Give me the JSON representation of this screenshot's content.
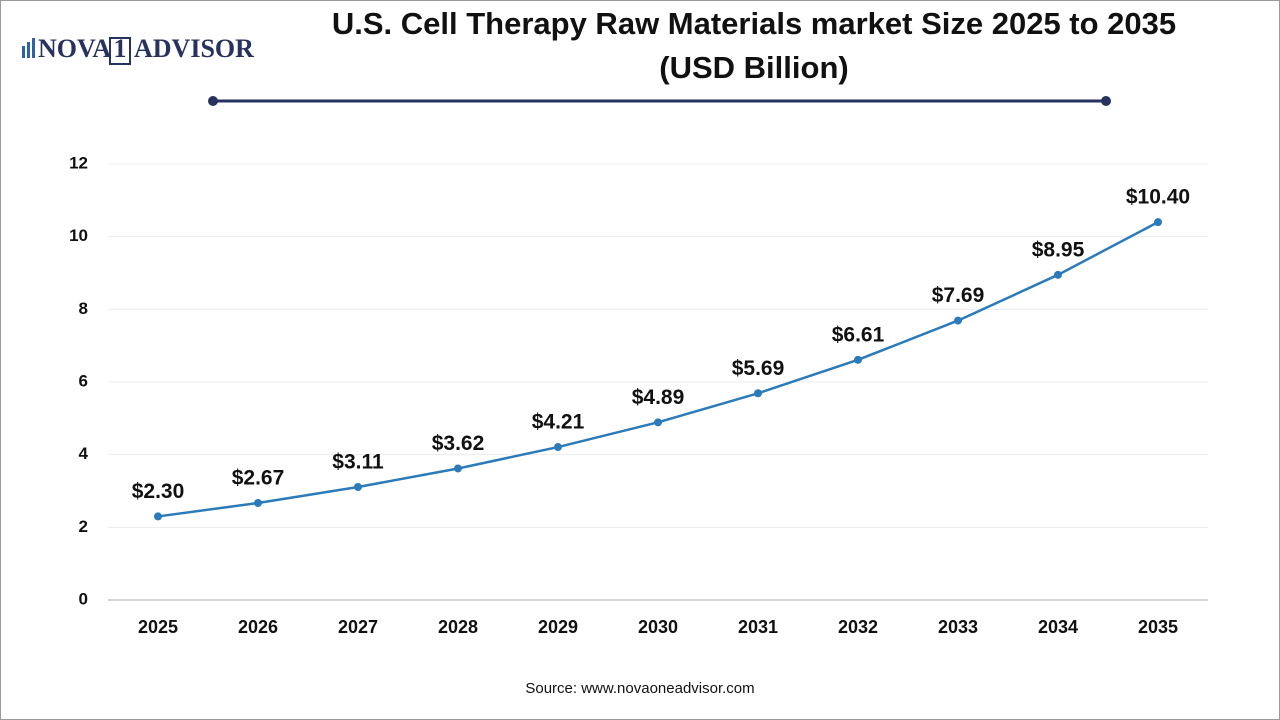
{
  "logo": {
    "left": "NOVA",
    "mark": "1",
    "right": "ADVISOR"
  },
  "chart_data": {
    "type": "line",
    "title": [
      "U.S. Cell Therapy Raw Materials market Size 2025 to 2035",
      "(USD Billion)"
    ],
    "categories": [
      "2025",
      "2026",
      "2027",
      "2028",
      "2029",
      "2030",
      "2031",
      "2032",
      "2033",
      "2034",
      "2035"
    ],
    "series": [
      {
        "name": "Market Size",
        "color": "#2b7bba",
        "values": [
          2.3,
          2.67,
          3.11,
          3.62,
          4.21,
          4.89,
          5.69,
          6.61,
          7.69,
          8.95,
          10.4
        ],
        "value_labels": [
          "$2.30",
          "$2.67",
          "$3.11",
          "$3.62",
          "$4.21",
          "$4.89",
          "$5.69",
          "$6.61",
          "$7.69",
          "$8.95",
          "$10.40"
        ]
      }
    ],
    "ylim": [
      0,
      12
    ],
    "yticks": [
      0,
      2,
      4,
      6,
      8,
      10,
      12
    ],
    "grid": true,
    "source": "Source: www.novaoneadvisor.com"
  }
}
